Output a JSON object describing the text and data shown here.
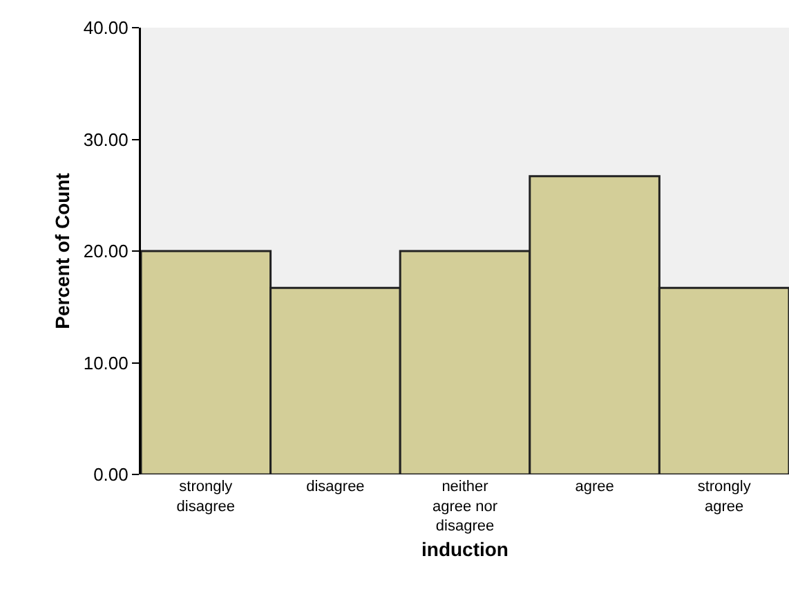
{
  "chart_data": {
    "type": "bar",
    "xlabel": "induction",
    "ylabel": "Percent of Count",
    "categories": [
      "strongly disagree",
      "disagree",
      "neither agree nor disagree",
      "agree",
      "strongly agree"
    ],
    "values": [
      20,
      16.7,
      20,
      26.7,
      16.7
    ],
    "color": "#d3ce98",
    "ylim": [
      0,
      40
    ],
    "yticks": [
      {
        "value": 0,
        "label": "0.00"
      },
      {
        "value": 10,
        "label": "10.00"
      },
      {
        "value": 20,
        "label": "20.00"
      },
      {
        "value": 30,
        "label": "30.00"
      },
      {
        "value": 40,
        "label": "40.00"
      }
    ],
    "grid": false
  }
}
